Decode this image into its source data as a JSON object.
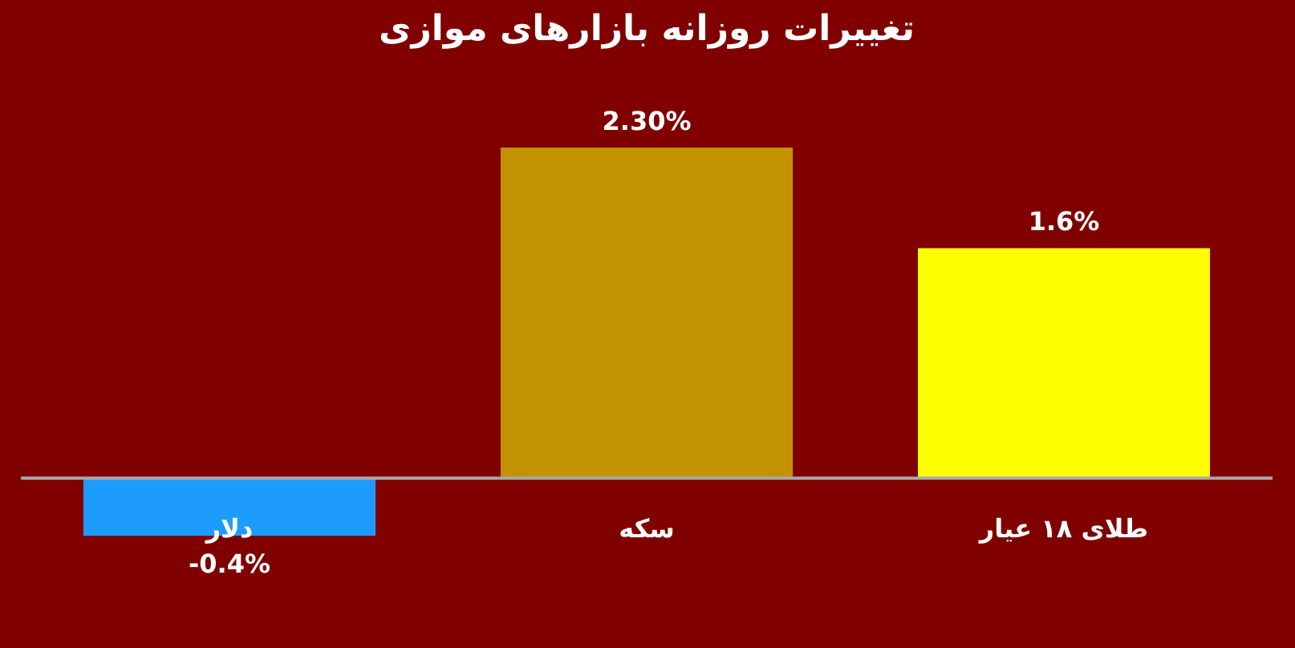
{
  "chart_data": {
    "type": "bar",
    "title": "تغییرات روزانه بازارهای موازی",
    "categories": [
      "دلار",
      "سکه",
      "طلای ۱۸ عیار"
    ],
    "values": [
      -0.4,
      2.3,
      1.6
    ],
    "colors": [
      "#1e9bff",
      "#c39200",
      "#ffff00"
    ],
    "value_labels": [
      "-0.4%",
      "2.30%",
      "1.6%"
    ],
    "data_labels": false
  }
}
